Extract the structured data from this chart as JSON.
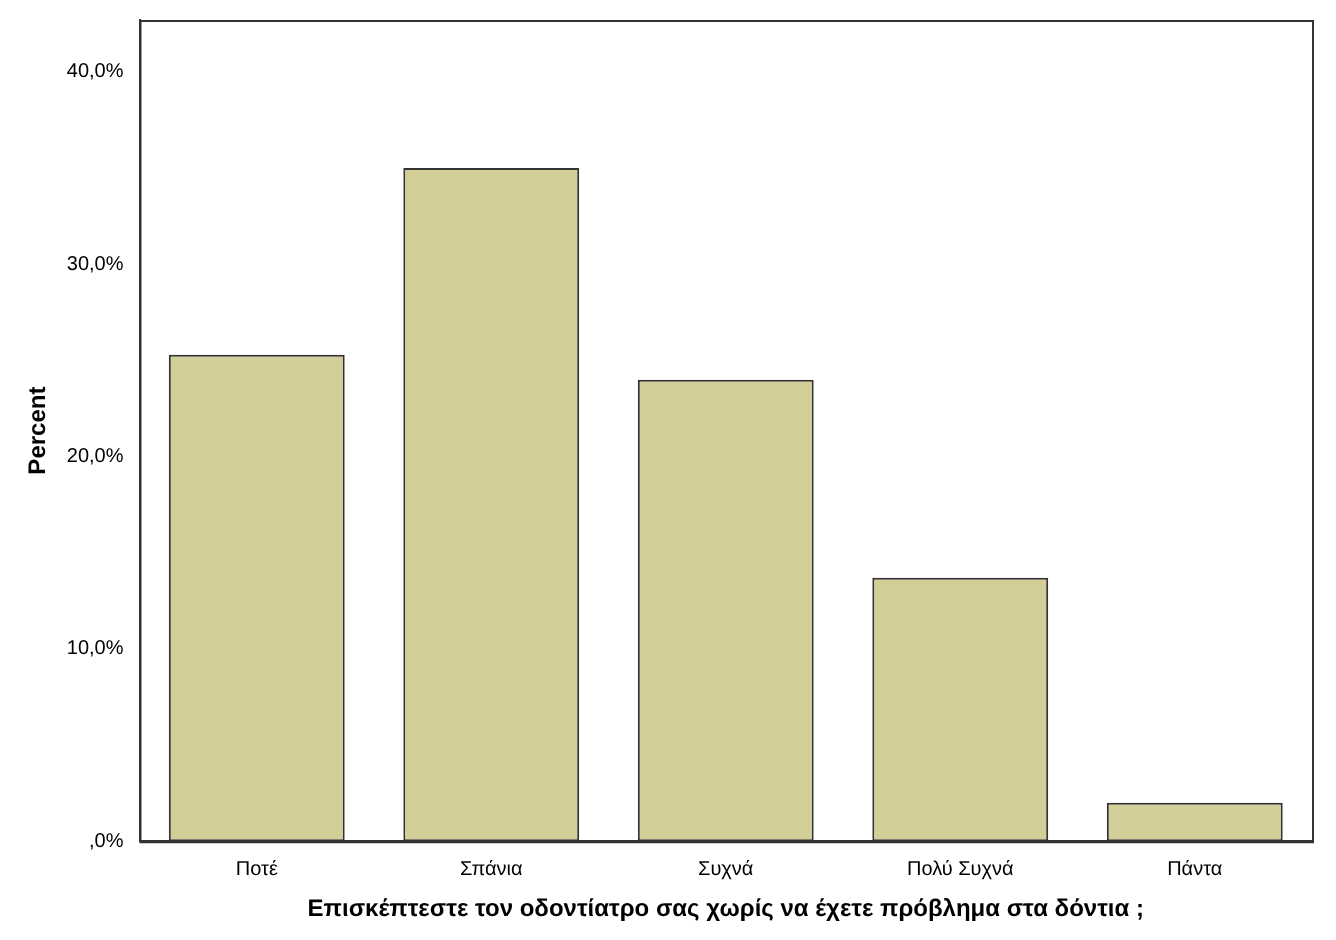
{
  "chart_data": {
    "type": "bar",
    "xlabel": "Επισκέπτεστε τον οδοντίατρο σας χωρίς να έχετε πρόβλημα στα δόντια ;",
    "ylabel": "Percent",
    "categories": [
      "Ποτέ",
      "Σπάνια",
      "Συχνά",
      "Πολύ Συχνά",
      "Πάντα"
    ],
    "values": [
      25.3,
      35.0,
      24.0,
      13.7,
      2.0
    ],
    "color": "#d3ce97",
    "ylim": [
      0,
      42.7
    ],
    "yticks": [
      {
        "value": 0,
        "label": ",0%"
      },
      {
        "value": 10,
        "label": "10,0%"
      },
      {
        "value": 20,
        "label": "20,0%"
      },
      {
        "value": 30,
        "label": "30,0%"
      },
      {
        "value": 40,
        "label": "40,0%"
      }
    ],
    "grid": false,
    "legend": false
  }
}
